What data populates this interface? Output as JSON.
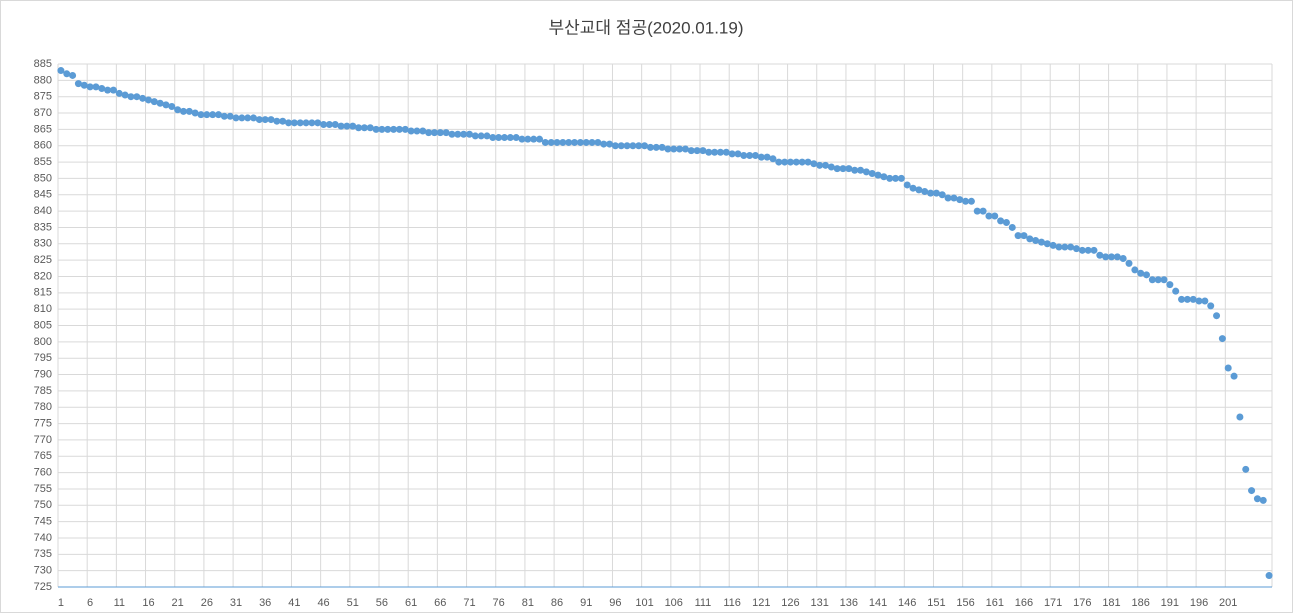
{
  "chart_data": {
    "type": "scatter",
    "title": "부산교대 점공(2020.01.19)",
    "categories": [
      "1",
      null,
      null,
      null,
      null,
      "6",
      null,
      null,
      null,
      null,
      "11",
      null,
      null,
      null,
      null,
      "16",
      null,
      null,
      null,
      null,
      "21",
      null,
      null,
      null,
      null,
      "26",
      null,
      null,
      null,
      null,
      "31",
      null,
      null,
      null,
      null,
      "36",
      null,
      null,
      null,
      null,
      "41",
      null,
      null,
      null,
      null,
      "46",
      null,
      null,
      null,
      null,
      "51",
      null,
      null,
      null,
      null,
      "56",
      null,
      null,
      null,
      null,
      "61",
      null,
      null,
      null,
      null,
      "66",
      null,
      null,
      null,
      null,
      "71",
      null,
      null,
      null,
      null,
      "76",
      null,
      null,
      null,
      null,
      "81",
      null,
      null,
      null,
      null,
      "86",
      null,
      null,
      null,
      null,
      "91",
      null,
      null,
      null,
      null,
      "96",
      null,
      null,
      null,
      null,
      "101",
      null,
      null,
      null,
      null,
      "106",
      null,
      null,
      null,
      null,
      "111",
      null,
      null,
      null,
      null,
      "116",
      null,
      null,
      null,
      null,
      "121",
      null,
      null,
      null,
      null,
      "126",
      null,
      null,
      null,
      null,
      "131",
      null,
      null,
      null,
      null,
      "136",
      null,
      null,
      null,
      null,
      "141",
      null,
      null,
      null,
      null,
      "146",
      null,
      null,
      null,
      null,
      "151",
      null,
      null,
      null,
      null,
      "156",
      null,
      null,
      null,
      null,
      "161",
      null,
      null,
      null,
      null,
      "166",
      null,
      null,
      null,
      null,
      "171",
      null,
      null,
      null,
      null,
      "176",
      null,
      null,
      null,
      null,
      "181",
      null,
      null,
      null,
      null,
      "186",
      null,
      null,
      null,
      null,
      "191",
      null,
      null,
      null,
      null,
      "196",
      null,
      null,
      null,
      null,
      "201",
      null,
      null,
      null,
      null,
      null,
      null,
      null
    ],
    "values": [
      883,
      882,
      881.5,
      879,
      878.5,
      878,
      878,
      877.5,
      877,
      877,
      876,
      875.5,
      875,
      875,
      874.5,
      874,
      873.5,
      873,
      872.5,
      872,
      871,
      870.5,
      870.5,
      870,
      869.5,
      869.5,
      869.5,
      869.5,
      869,
      869,
      868.5,
      868.5,
      868.5,
      868.5,
      868,
      868,
      868,
      867.5,
      867.5,
      867,
      867,
      867,
      867,
      867,
      867,
      866.5,
      866.5,
      866.5,
      866,
      866,
      866,
      865.5,
      865.5,
      865.5,
      865,
      865,
      865,
      865,
      865,
      865,
      864.5,
      864.5,
      864.5,
      864,
      864,
      864,
      864,
      863.5,
      863.5,
      863.5,
      863.5,
      863,
      863,
      863,
      862.5,
      862.5,
      862.5,
      862.5,
      862.5,
      862,
      862,
      862,
      862,
      861,
      861,
      861,
      861,
      861,
      861,
      861,
      861,
      861,
      861,
      860.5,
      860.5,
      860,
      860,
      860,
      860,
      860,
      860,
      859.5,
      859.5,
      859.5,
      859,
      859,
      859,
      859,
      858.5,
      858.5,
      858.5,
      858,
      858,
      858,
      858,
      857.5,
      857.5,
      857,
      857,
      857,
      856.5,
      856.5,
      856,
      855,
      855,
      855,
      855,
      855,
      855,
      854.5,
      854,
      854,
      853.5,
      853,
      853,
      853,
      852.5,
      852.5,
      852,
      851.5,
      851,
      850.5,
      850,
      850,
      850,
      848,
      847,
      846.5,
      846,
      845.5,
      845.5,
      845,
      844,
      844,
      843.5,
      843,
      843,
      840,
      840,
      838.5,
      838.5,
      837,
      836.5,
      835,
      832.5,
      832.5,
      831.5,
      831,
      830.5,
      830,
      829.5,
      829,
      829,
      829,
      828.5,
      828,
      828,
      828,
      826.5,
      826,
      826,
      826,
      825.5,
      824,
      822,
      821,
      820.5,
      819,
      819,
      819,
      817.5,
      815.5,
      813,
      813,
      813,
      812.5,
      812.5,
      811,
      808,
      801,
      792,
      789.5,
      777,
      761,
      754.5,
      752,
      751.5,
      728.5
    ],
    "color": "#5b9bd5",
    "ylim": [
      725,
      885
    ],
    "yticks": [
      725,
      730,
      735,
      740,
      745,
      750,
      755,
      760,
      765,
      770,
      775,
      780,
      785,
      790,
      795,
      800,
      805,
      810,
      815,
      820,
      825,
      830,
      835,
      840,
      845,
      850,
      855,
      860,
      865,
      870,
      875,
      880,
      885
    ],
    "grid": true
  }
}
